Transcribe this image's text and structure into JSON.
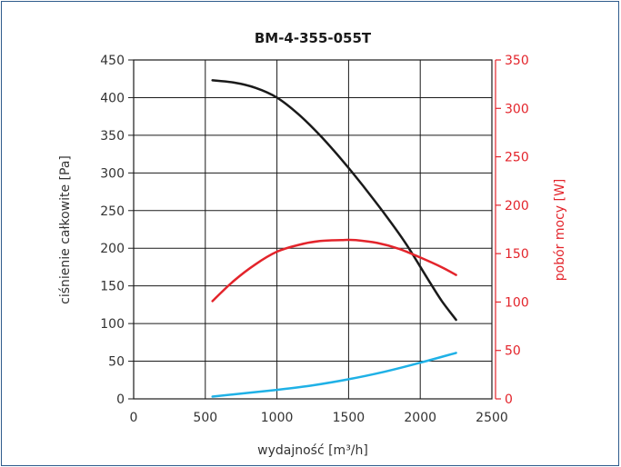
{
  "chart_data": {
    "type": "line",
    "title": "BM-4-355-055T",
    "xlabel": "wydajność [m³/h]",
    "ylabel": "ciśnienie całkowite [Pa]",
    "y2label": "pobór mocy [W]",
    "xlim": [
      0,
      2500
    ],
    "ylim": [
      0,
      450
    ],
    "y2lim": [
      0,
      350
    ],
    "xticks": [
      "0",
      "500",
      "1000",
      "1500",
      "2000",
      "2500"
    ],
    "yticks": [
      "0",
      "50",
      "100",
      "150",
      "200",
      "250",
      "300",
      "350",
      "400",
      "450"
    ],
    "y2ticks": [
      "0",
      "50",
      "100",
      "150",
      "200",
      "250",
      "300",
      "350"
    ],
    "grid": true,
    "series": [
      {
        "axis": "left",
        "color": "#1a1a1a",
        "x": [
          550,
          700,
          850,
          1000,
          1150,
          1300,
          1450,
          1600,
          1750,
          1900,
          2050,
          2150,
          2250
        ],
        "y": [
          423,
          420,
          413,
          400,
          378,
          350,
          318,
          283,
          246,
          206,
          160,
          130,
          105
        ]
      },
      {
        "axis": "right",
        "color": "#e3242b",
        "x": [
          550,
          700,
          850,
          1000,
          1150,
          1300,
          1450,
          1550,
          1700,
          1850,
          2000,
          2150,
          2250
        ],
        "y": [
          101,
          122,
          139,
          152,
          159,
          163,
          164,
          164,
          161,
          155,
          146,
          136,
          128
        ]
      },
      {
        "axis": "left",
        "color": "#1fb1e6",
        "x": [
          550,
          800,
          1000,
          1250,
          1500,
          1750,
          2000,
          2250
        ],
        "y": [
          3,
          8,
          12,
          18,
          26,
          36,
          48,
          61
        ]
      }
    ]
  }
}
